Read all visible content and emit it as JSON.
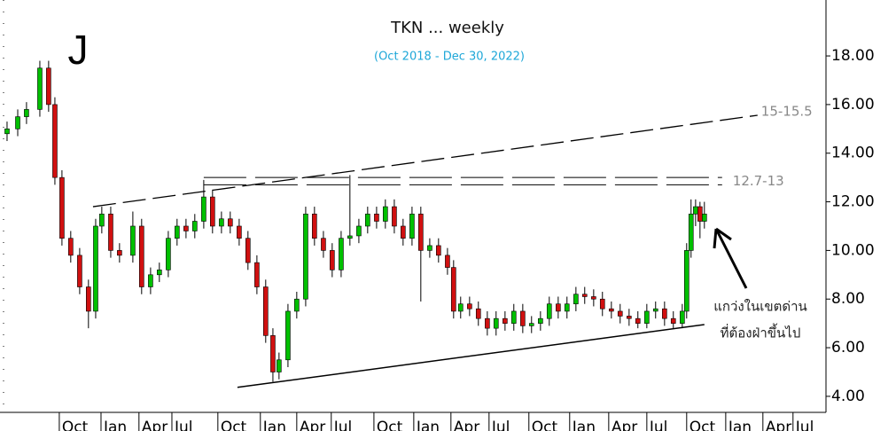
{
  "chart_data": {
    "type": "candlestick",
    "title": "TKN ... weekly",
    "subtitle": "(Oct 2018 - Dec 30, 2022)",
    "logo": "J",
    "up_color": "#00c000",
    "down_color": "#d01010",
    "xlim": [
      2018.355,
      2023.61
    ],
    "ylim": [
      3.34,
      20.3
    ],
    "yticks": [
      {
        "value": 4,
        "label": "4.00"
      },
      {
        "value": 6,
        "label": "6.00"
      },
      {
        "value": 8,
        "label": "8.00"
      },
      {
        "value": 10,
        "label": "10.00"
      },
      {
        "value": 12,
        "label": "12.00"
      },
      {
        "value": 14,
        "label": "14.00"
      },
      {
        "value": 16,
        "label": "16.00"
      },
      {
        "value": 18,
        "label": "18.00"
      }
    ],
    "xticks": [
      {
        "value": 2018.75,
        "label": "Oct"
      },
      {
        "value": 2019.016,
        "label": "Jan"
      },
      {
        "value": 2019.258,
        "label": "Apr"
      },
      {
        "value": 2019.468,
        "label": "Jul"
      },
      {
        "value": 2019.761,
        "label": "Oct"
      },
      {
        "value": 2020.032,
        "label": "Jan"
      },
      {
        "value": 2020.264,
        "label": "Apr"
      },
      {
        "value": 2020.484,
        "label": "Jul"
      },
      {
        "value": 2020.756,
        "label": "Oct"
      },
      {
        "value": 2021.01,
        "label": "Jan"
      },
      {
        "value": 2021.247,
        "label": "Apr"
      },
      {
        "value": 2021.49,
        "label": "Jul"
      },
      {
        "value": 2021.744,
        "label": "Oct"
      },
      {
        "value": 2022.004,
        "label": "Jan"
      },
      {
        "value": 2022.253,
        "label": "Apr"
      },
      {
        "value": 2022.496,
        "label": "Jul"
      },
      {
        "value": 2022.75,
        "label": "Oct"
      },
      {
        "value": 2022.999,
        "label": "Jan"
      },
      {
        "value": 2023.236,
        "label": "Apr"
      },
      {
        "value": 2023.428,
        "label": "Jul"
      }
    ],
    "candles": {
      "x": [
        2018.4,
        2018.468,
        2018.524,
        2018.609,
        2018.665,
        2018.705,
        2018.75,
        2018.806,
        2018.863,
        2018.919,
        2018.965,
        2019.004,
        2019.061,
        2019.117,
        2019.202,
        2019.258,
        2019.315,
        2019.371,
        2019.428,
        2019.484,
        2019.541,
        2019.597,
        2019.654,
        2019.71,
        2019.767,
        2019.823,
        2019.88,
        2019.936,
        2019.993,
        2020.049,
        2020.095,
        2020.134,
        2020.191,
        2020.247,
        2020.304,
        2020.36,
        2020.417,
        2020.473,
        2020.53,
        2020.586,
        2020.643,
        2020.699,
        2020.756,
        2020.812,
        2020.869,
        2020.925,
        2020.982,
        2021.038,
        2021.095,
        2021.151,
        2021.208,
        2021.247,
        2021.292,
        2021.349,
        2021.405,
        2021.462,
        2021.518,
        2021.575,
        2021.631,
        2021.688,
        2021.744,
        2021.801,
        2021.857,
        2021.914,
        2021.97,
        2022.027,
        2022.083,
        2022.14,
        2022.196,
        2022.253,
        2022.309,
        2022.366,
        2022.422,
        2022.479,
        2022.535,
        2022.592,
        2022.648,
        2022.705,
        2022.733,
        2022.761,
        2022.79,
        2022.818,
        2022.846
      ],
      "open": [
        14.8,
        15.0,
        15.5,
        15.8,
        17.5,
        16,
        13,
        10.5,
        9.8,
        8.5,
        7.5,
        11,
        11.5,
        10,
        9.8,
        11,
        8.5,
        9,
        9.2,
        10.5,
        11,
        10.8,
        11.2,
        12.2,
        11,
        11.3,
        11,
        10.5,
        9.5,
        8.5,
        6.5,
        5,
        5.5,
        7.5,
        8,
        11.5,
        10.5,
        10,
        9.2,
        10.5,
        10.6,
        11,
        11.5,
        11.2,
        11.8,
        11,
        10.5,
        11.5,
        10,
        10.2,
        9.8,
        9.3,
        7.5,
        7.8,
        7.6,
        7.2,
        6.8,
        7.2,
        7,
        7.5,
        6.9,
        7,
        7.2,
        7.8,
        7.5,
        7.8,
        8.2,
        8.1,
        8.0,
        7.6,
        7.5,
        7.3,
        7.2,
        7.0,
        7.5,
        7.6,
        7.2,
        7.0,
        7.5,
        10,
        11.5,
        11.8,
        11.2
      ],
      "high": [
        15.3,
        15.8,
        16.1,
        17.8,
        17.8,
        16.3,
        13.3,
        10.8,
        10.1,
        8.8,
        11.3,
        11.8,
        11.8,
        10.3,
        11.6,
        11.3,
        9.3,
        9.5,
        10.8,
        11.3,
        11.3,
        11.5,
        12.9,
        12.5,
        11.6,
        11.6,
        11.3,
        10.8,
        9.8,
        8.8,
        6.8,
        5.8,
        7.8,
        8.3,
        11.8,
        11.8,
        10.8,
        10.3,
        10.8,
        13.1,
        11.3,
        11.8,
        11.8,
        12.1,
        12.1,
        11.3,
        11.8,
        11.8,
        10.5,
        10.5,
        10.1,
        9.6,
        8.1,
        8.1,
        7.9,
        7.5,
        7.5,
        7.5,
        7.8,
        7.8,
        7.3,
        7.5,
        8.1,
        8.1,
        8.1,
        8.5,
        8.5,
        8.4,
        8.3,
        7.9,
        7.8,
        7.6,
        7.5,
        7.8,
        7.9,
        7.9,
        7.5,
        7.8,
        10.3,
        12.1,
        12.1,
        12.0,
        12.0
      ],
      "low": [
        14.5,
        14.7,
        15.2,
        15.5,
        15.7,
        12.7,
        10.2,
        9.5,
        8.2,
        6.8,
        7.2,
        10.7,
        9.7,
        9.5,
        9.5,
        8.2,
        8.2,
        8.7,
        8.9,
        10.2,
        10.5,
        10.5,
        10.9,
        10.7,
        10.7,
        10.7,
        10.2,
        9.2,
        8.2,
        6.2,
        4.6,
        4.7,
        5.2,
        7.2,
        7.7,
        10.2,
        9.7,
        8.9,
        8.9,
        10.2,
        10.3,
        10.7,
        10.9,
        10.9,
        10.7,
        10.2,
        10.2,
        7.9,
        9.7,
        9.5,
        9.0,
        7.2,
        7.2,
        7.3,
        6.9,
        6.5,
        6.5,
        6.7,
        6.7,
        6.6,
        6.6,
        6.7,
        6.9,
        7.2,
        7.2,
        7.5,
        7.8,
        7.7,
        7.3,
        7.2,
        7.0,
        6.9,
        6.8,
        6.8,
        7.2,
        6.9,
        6.8,
        6.8,
        7.2,
        9.7,
        11.0,
        10.5,
        10.9
      ],
      "close": [
        15.0,
        15.5,
        15.8,
        17.5,
        16,
        13,
        10.5,
        9.8,
        8.5,
        7.5,
        11,
        11.5,
        10,
        9.8,
        11,
        8.5,
        9,
        9.2,
        10.5,
        11,
        10.8,
        11.2,
        12.2,
        11,
        11.3,
        11,
        10.5,
        9.5,
        8.5,
        6.5,
        5,
        5.5,
        7.5,
        8,
        11.5,
        10.5,
        10,
        9.2,
        10.5,
        10.6,
        11,
        11.5,
        11.2,
        11.8,
        11,
        10.5,
        11.5,
        10,
        10.2,
        9.8,
        9.3,
        7.5,
        7.8,
        7.6,
        7.2,
        6.8,
        7.2,
        7,
        7.5,
        6.9,
        7,
        7.2,
        7.8,
        7.5,
        7.8,
        8.2,
        8.1,
        8.0,
        7.6,
        7.5,
        7.3,
        7.2,
        7.0,
        7.5,
        7.6,
        7.2,
        7.0,
        7.5,
        10,
        11.5,
        11.8,
        11.2,
        11.5
      ]
    },
    "levels": {
      "label": "12.7-13",
      "values": [
        12.7,
        13
      ],
      "x": [
        2019.654,
        2022.959
      ]
    },
    "upper_trendline": {
      "label": "15-15.5",
      "x": [
        2018.948,
        2023.185
      ],
      "y": [
        11.8,
        15.56
      ]
    },
    "lower_trendline": {
      "x": [
        2019.869,
        2022.846
      ],
      "y": [
        4.37,
        6.95
      ]
    },
    "annotation": [
      "แกว่งในเขตด่าน",
      "ที่ต้องฝ่าขึ้นไป"
    ]
  }
}
